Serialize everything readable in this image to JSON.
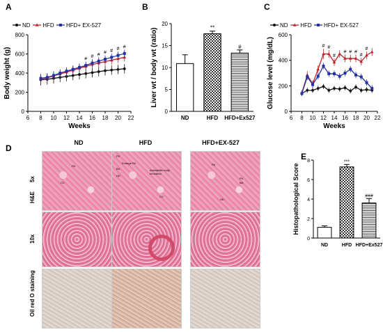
{
  "colors": {
    "nd": "#111111",
    "hfd": "#c0262c",
    "ex": "#2431a6"
  },
  "panel_letters": {
    "a": "A",
    "b": "B",
    "c": "C",
    "d": "D",
    "e": "E"
  },
  "chart_data": [
    {
      "id": "A",
      "type": "line",
      "title": "",
      "xlabel": "Weeks",
      "ylabel": "Body weight (g)",
      "xlim": [
        6,
        22
      ],
      "ylim": [
        0,
        800
      ],
      "xticks": [
        "6",
        "8",
        "10",
        "12",
        "14",
        "16",
        "18",
        "20",
        "22"
      ],
      "yticks": [
        "0",
        "200",
        "400",
        "600",
        "800"
      ],
      "x": [
        8,
        9,
        10,
        11,
        12,
        13,
        14,
        15,
        16,
        17,
        18,
        19,
        20,
        21
      ],
      "series": [
        {
          "name": "ND",
          "values": [
            330,
            335,
            345,
            355,
            365,
            375,
            385,
            395,
            405,
            415,
            425,
            432,
            438,
            445
          ],
          "err": [
            60,
            55,
            55,
            50,
            50,
            50,
            50,
            50,
            50,
            50,
            50,
            50,
            50,
            50
          ]
        },
        {
          "name": "HFD",
          "values": [
            340,
            350,
            370,
            390,
            410,
            430,
            450,
            470,
            490,
            505,
            520,
            535,
            550,
            565
          ],
          "err": [
            50,
            50,
            50,
            45,
            45,
            45,
            45,
            45,
            45,
            45,
            45,
            45,
            45,
            45
          ]
        },
        {
          "name": "HFD+ EX-527",
          "values": [
            345,
            355,
            375,
            400,
            420,
            440,
            460,
            480,
            505,
            525,
            545,
            565,
            585,
            605
          ],
          "err": [
            40,
            40,
            40,
            40,
            40,
            40,
            40,
            40,
            40,
            40,
            40,
            40,
            40,
            40
          ]
        }
      ],
      "annotations": [
        {
          "x": 15,
          "text": "#"
        },
        {
          "x": 16,
          "text": "#"
        },
        {
          "x": 17,
          "text": "#"
        },
        {
          "x": 18,
          "text": "#"
        },
        {
          "x": 19,
          "text": "#"
        },
        {
          "x": 20,
          "text": "#"
        },
        {
          "x": 21,
          "text": "#"
        }
      ]
    },
    {
      "id": "B",
      "type": "bar",
      "title": "",
      "xlabel": "",
      "ylabel": "Liver wt / body wt (ratio)",
      "ylim": [
        0,
        20
      ],
      "yticks": [
        "0",
        "5",
        "10",
        "15",
        "20"
      ],
      "categories": [
        "ND",
        "HFD",
        "HFD+Ex527"
      ],
      "values": [
        10.9,
        17.7,
        13.3
      ],
      "err": [
        2.0,
        0.6,
        0.7
      ],
      "annotations": [
        "",
        "**",
        "#"
      ]
    },
    {
      "id": "C",
      "type": "line",
      "title": "",
      "xlabel": "Weeks",
      "ylabel": "Glucose level (mg/dL)",
      "xlim": [
        6,
        22
      ],
      "ylim": [
        0,
        600
      ],
      "xticks": [
        "6",
        "8",
        "10",
        "12",
        "14",
        "16",
        "18",
        "20",
        "22"
      ],
      "yticks": [
        "0",
        "200",
        "400",
        "600"
      ],
      "x": [
        8,
        9,
        10,
        11,
        12,
        13,
        14,
        15,
        16,
        17,
        18,
        19,
        20,
        21
      ],
      "series": [
        {
          "name": "ND",
          "values": [
            140,
            165,
            165,
            180,
            195,
            165,
            180,
            175,
            185,
            160,
            190,
            165,
            170,
            165
          ],
          "err": [
            20,
            20,
            20,
            20,
            20,
            20,
            20,
            20,
            20,
            20,
            20,
            20,
            20,
            20
          ]
        },
        {
          "name": "HFD",
          "values": [
            145,
            285,
            215,
            330,
            450,
            450,
            385,
            450,
            415,
            415,
            415,
            390,
            440,
            465
          ],
          "err": [
            20,
            30,
            30,
            30,
            40,
            30,
            30,
            30,
            30,
            30,
            30,
            30,
            30,
            30
          ]
        },
        {
          "name": "HFD+ EX-527",
          "values": [
            140,
            270,
            210,
            275,
            355,
            295,
            295,
            275,
            300,
            330,
            285,
            270,
            225,
            180
          ],
          "err": [
            20,
            25,
            25,
            25,
            25,
            25,
            25,
            25,
            25,
            25,
            25,
            25,
            25,
            25
          ]
        }
      ],
      "annotations": [
        {
          "x": 12,
          "text": "#"
        },
        {
          "x": 13,
          "text": "#"
        },
        {
          "x": 14,
          "text": "#"
        },
        {
          "x": 16,
          "text": "#"
        },
        {
          "x": 17,
          "text": "#"
        },
        {
          "x": 18,
          "text": "#"
        },
        {
          "x": 19,
          "text": "#"
        },
        {
          "x": 20,
          "text": "#"
        }
      ]
    },
    {
      "id": "E",
      "type": "bar",
      "title": "",
      "xlabel": "",
      "ylabel": "Histopathological Score",
      "ylim": [
        0,
        8
      ],
      "yticks": [
        "0",
        "2",
        "4",
        "6",
        "8"
      ],
      "categories": [
        "ND",
        "HFD",
        "HFD+Ex527"
      ],
      "values": [
        1.1,
        7.3,
        3.6
      ],
      "err": [
        0.15,
        0.25,
        0.45
      ],
      "annotations": [
        "",
        "***",
        "###"
      ]
    }
  ],
  "histology": {
    "columns": [
      "ND",
      "HFD",
      "HFD+EX-527"
    ],
    "rows": [
      "5x",
      "10x",
      "Oil red O staining"
    ],
    "group_label": "H&E",
    "labels": {
      "nd_pa": "PA",
      "nd_cv": "CV",
      "hfd_pv": "PV",
      "hfd_enlarge": "Enlarge PA",
      "hfd_ba": "BA",
      "hfd_hd": "HD",
      "hfd_acid": "Acidophilic body formation",
      "hfd_cv": "CV",
      "ex_pa": "PA",
      "ex_pv": "PV",
      "ex_ba": "BA",
      "ex_hd": "HD"
    }
  }
}
